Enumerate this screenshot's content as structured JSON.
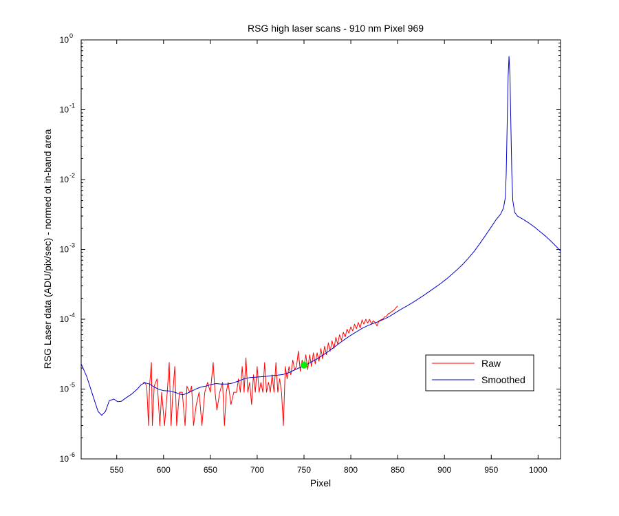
{
  "chart_data": {
    "type": "line",
    "title": "RSG high laser scans  - 910 nm    Pixel 969",
    "xlabel": "Pixel",
    "ylabel": "RSG Laser data (ADU/pix/sec) - normed ot in-band area",
    "xlim": [
      512,
      1024
    ],
    "ylim": [
      1e-06,
      1
    ],
    "yscale": "log",
    "xticks": [
      550,
      600,
      650,
      700,
      750,
      800,
      850,
      900,
      950,
      1000
    ],
    "yticks": [
      {
        "value": 1e-06,
        "base": "10",
        "exp": "-6"
      },
      {
        "value": 1e-05,
        "base": "10",
        "exp": "-5"
      },
      {
        "value": 0.0001,
        "base": "10",
        "exp": "-4"
      },
      {
        "value": 0.001,
        "base": "10",
        "exp": "-3"
      },
      {
        "value": 0.01,
        "base": "10",
        "exp": "-2"
      },
      {
        "value": 0.1,
        "base": "10",
        "exp": "-1"
      },
      {
        "value": 1,
        "base": "10",
        "exp": "0"
      }
    ],
    "grid": false,
    "legend_position": "lower-right",
    "series": [
      {
        "name": "Raw",
        "color": "#ff0000",
        "points": [
          [
            578,
            1.25e-05
          ],
          [
            580,
            1.25e-05
          ],
          [
            582,
            1.1e-05
          ],
          [
            584,
            3e-06
          ],
          [
            585,
            1.1e-05
          ],
          [
            587,
            2.4e-05
          ],
          [
            588,
            3e-06
          ],
          [
            590,
            1.1e-05
          ],
          [
            593,
            1.4e-05
          ],
          [
            596,
            3e-06
          ],
          [
            598,
            9e-06
          ],
          [
            601,
            3e-06
          ],
          [
            604,
            9e-06
          ],
          [
            606,
            2.4e-05
          ],
          [
            608,
            3e-06
          ],
          [
            610,
            9e-06
          ],
          [
            612,
            2.1e-05
          ],
          [
            614,
            3e-06
          ],
          [
            617,
            9e-06
          ],
          [
            620,
            9e-06
          ],
          [
            623,
            3e-06
          ],
          [
            625,
            1.1e-05
          ],
          [
            628,
            9e-06
          ],
          [
            630,
            1.1e-05
          ],
          [
            632,
            3e-06
          ],
          [
            635,
            6e-06
          ],
          [
            638,
            9e-06
          ],
          [
            641,
            3e-06
          ],
          [
            644,
            9e-06
          ],
          [
            647,
            1.25e-05
          ],
          [
            650,
            9e-06
          ],
          [
            653,
            2.4e-05
          ],
          [
            655,
            9e-06
          ],
          [
            657,
            5e-06
          ],
          [
            660,
            9e-06
          ],
          [
            663,
            1.25e-05
          ],
          [
            665,
            3e-06
          ],
          [
            667,
            9e-06
          ],
          [
            669,
            1.25e-05
          ],
          [
            672,
            6e-06
          ],
          [
            675,
            9e-06
          ],
          [
            678,
            9e-06
          ],
          [
            680,
            1.4e-05
          ],
          [
            682,
            9e-06
          ],
          [
            684,
            2.1e-05
          ],
          [
            686,
            9e-06
          ],
          [
            688,
            2.8e-05
          ],
          [
            690,
            9e-06
          ],
          [
            692,
            1.25e-05
          ],
          [
            694,
            6e-06
          ],
          [
            696,
            1.6e-05
          ],
          [
            698,
            9e-06
          ],
          [
            700,
            2.1e-05
          ],
          [
            702,
            9e-06
          ],
          [
            704,
            1.25e-05
          ],
          [
            706,
            9e-06
          ],
          [
            708,
            2.4e-05
          ],
          [
            710,
            9e-06
          ],
          [
            712,
            1.25e-05
          ],
          [
            714,
            9e-06
          ],
          [
            716,
            1.6e-05
          ],
          [
            718,
            9e-06
          ],
          [
            720,
            2.4e-05
          ],
          [
            722,
            9e-06
          ],
          [
            724,
            1.4e-05
          ],
          [
            726,
            9e-06
          ],
          [
            728,
            3e-06
          ],
          [
            730,
            2.1e-05
          ],
          [
            732,
            1.4e-05
          ],
          [
            734,
            2.1e-05
          ],
          [
            736,
            1.6e-05
          ],
          [
            738,
            2.6e-05
          ],
          [
            740,
            1.9e-05
          ],
          [
            742,
            2.1e-05
          ],
          [
            744,
            3.5e-05
          ],
          [
            746,
            1.8e-05
          ],
          [
            748,
            2.6e-05
          ],
          [
            750,
            2.1e-05
          ],
          [
            752,
            3.1e-05
          ],
          [
            754,
            1.9e-05
          ],
          [
            756,
            3.1e-05
          ],
          [
            758,
            2.1e-05
          ],
          [
            760,
            3.3e-05
          ],
          [
            762,
            2.3e-05
          ],
          [
            764,
            3.3e-05
          ],
          [
            766,
            2.5e-05
          ],
          [
            768,
            3.8e-05
          ],
          [
            770,
            2.7e-05
          ],
          [
            772,
            4.1e-05
          ],
          [
            774,
            3.1e-05
          ],
          [
            776,
            4.6e-05
          ],
          [
            778,
            3.5e-05
          ],
          [
            780,
            4.9e-05
          ],
          [
            782,
            3.8e-05
          ],
          [
            784,
            5.5e-05
          ],
          [
            786,
            4.4e-05
          ],
          [
            788,
            6e-05
          ],
          [
            790,
            5e-05
          ],
          [
            792,
            6.5e-05
          ],
          [
            794,
            5.6e-05
          ],
          [
            796,
            7.2e-05
          ],
          [
            798,
            6.3e-05
          ],
          [
            800,
            7.8e-05
          ],
          [
            802,
            6.8e-05
          ],
          [
            804,
            8.5e-05
          ],
          [
            806,
            7.3e-05
          ],
          [
            808,
            9e-05
          ],
          [
            810,
            7.5e-05
          ],
          [
            812,
            9.8e-05
          ],
          [
            814,
            8.5e-05
          ],
          [
            816,
            0.0001
          ],
          [
            818,
            8.8e-05
          ],
          [
            820,
            0.0001
          ],
          [
            822,
            8.6e-05
          ],
          [
            824,
            9.5e-05
          ],
          [
            826,
            9e-05
          ],
          [
            828,
            8e-05
          ],
          [
            830,
            9.5e-05
          ],
          [
            832,
            9.8e-05
          ],
          [
            834,
            0.0001
          ],
          [
            836,
            0.000108
          ],
          [
            838,
            0.00011
          ],
          [
            840,
            0.00012
          ],
          [
            842,
            0.000123
          ],
          [
            844,
            0.00013
          ],
          [
            846,
            0.000135
          ],
          [
            848,
            0.000145
          ],
          [
            850,
            0.000155
          ]
        ]
      },
      {
        "name": "Smoothed",
        "color": "#0000cc",
        "points": [
          [
            512,
            2.3e-05
          ],
          [
            518,
            1.5e-05
          ],
          [
            524,
            8.5e-06
          ],
          [
            530,
            4.8e-06
          ],
          [
            534,
            4.2e-06
          ],
          [
            538,
            4.8e-06
          ],
          [
            542,
            6.8e-06
          ],
          [
            547,
            7.2e-06
          ],
          [
            551,
            6.6e-06
          ],
          [
            555,
            6.7e-06
          ],
          [
            560,
            7.5e-06
          ],
          [
            566,
            8.5e-06
          ],
          [
            572,
            1e-05
          ],
          [
            576,
            1.15e-05
          ],
          [
            580,
            1.23e-05
          ],
          [
            585,
            1.18e-05
          ],
          [
            590,
            1.07e-05
          ],
          [
            595,
            9.9e-06
          ],
          [
            600,
            9.5e-06
          ],
          [
            606,
            9.4e-06
          ],
          [
            612,
            9e-06
          ],
          [
            617,
            8.5e-06
          ],
          [
            621,
            8.3e-06
          ],
          [
            626,
            8.8e-06
          ],
          [
            631,
            9.5e-06
          ],
          [
            636,
            1.02e-05
          ],
          [
            640,
            1.07e-05
          ],
          [
            645,
            1.1e-05
          ],
          [
            650,
            1.15e-05
          ],
          [
            656,
            1.2e-05
          ],
          [
            662,
            1.18e-05
          ],
          [
            668,
            1.18e-05
          ],
          [
            674,
            1.22e-05
          ],
          [
            680,
            1.3e-05
          ],
          [
            686,
            1.4e-05
          ],
          [
            692,
            1.46e-05
          ],
          [
            698,
            1.48e-05
          ],
          [
            704,
            1.5e-05
          ],
          [
            710,
            1.52e-05
          ],
          [
            716,
            1.56e-05
          ],
          [
            722,
            1.58e-05
          ],
          [
            728,
            1.62e-05
          ],
          [
            734,
            1.72e-05
          ],
          [
            740,
            1.88e-05
          ],
          [
            746,
            2.05e-05
          ],
          [
            752,
            2.2e-05
          ],
          [
            758,
            2.45e-05
          ],
          [
            764,
            2.7e-05
          ],
          [
            770,
            3.05e-05
          ],
          [
            776,
            3.45e-05
          ],
          [
            782,
            3.95e-05
          ],
          [
            788,
            4.55e-05
          ],
          [
            794,
            5.2e-05
          ],
          [
            800,
            5.9e-05
          ],
          [
            806,
            6.6e-05
          ],
          [
            812,
            7.4e-05
          ],
          [
            818,
            8.1e-05
          ],
          [
            824,
            8.7e-05
          ],
          [
            830,
            9.3e-05
          ],
          [
            836,
            0.000101
          ],
          [
            842,
            0.000111
          ],
          [
            848,
            0.000125
          ],
          [
            854,
            0.00014
          ],
          [
            860,
            0.000155
          ],
          [
            866,
            0.000173
          ],
          [
            872,
            0.000195
          ],
          [
            878,
            0.00022
          ],
          [
            884,
            0.00025
          ],
          [
            890,
            0.000285
          ],
          [
            896,
            0.000325
          ],
          [
            902,
            0.000375
          ],
          [
            908,
            0.00044
          ],
          [
            914,
            0.00052
          ],
          [
            920,
            0.00062
          ],
          [
            926,
            0.00076
          ],
          [
            932,
            0.00095
          ],
          [
            938,
            0.00122
          ],
          [
            944,
            0.0016
          ],
          [
            950,
            0.0021
          ],
          [
            955,
            0.00265
          ],
          [
            960,
            0.0032
          ],
          [
            963,
            0.0039
          ],
          [
            965,
            0.0055
          ],
          [
            966,
            0.012
          ],
          [
            967,
            0.06
          ],
          [
            968,
            0.3
          ],
          [
            969,
            0.58
          ],
          [
            970,
            0.3
          ],
          [
            971,
            0.06
          ],
          [
            972,
            0.012
          ],
          [
            973,
            0.005
          ],
          [
            975,
            0.0034
          ],
          [
            978,
            0.003
          ],
          [
            984,
            0.0027
          ],
          [
            990,
            0.0024
          ],
          [
            996,
            0.0021
          ],
          [
            1002,
            0.0018
          ],
          [
            1008,
            0.00155
          ],
          [
            1014,
            0.0013
          ],
          [
            1020,
            0.00108
          ],
          [
            1024,
            0.00095
          ]
        ]
      }
    ],
    "marker": {
      "x": 750,
      "y": 2.2e-05,
      "color": "#00ee00"
    }
  }
}
